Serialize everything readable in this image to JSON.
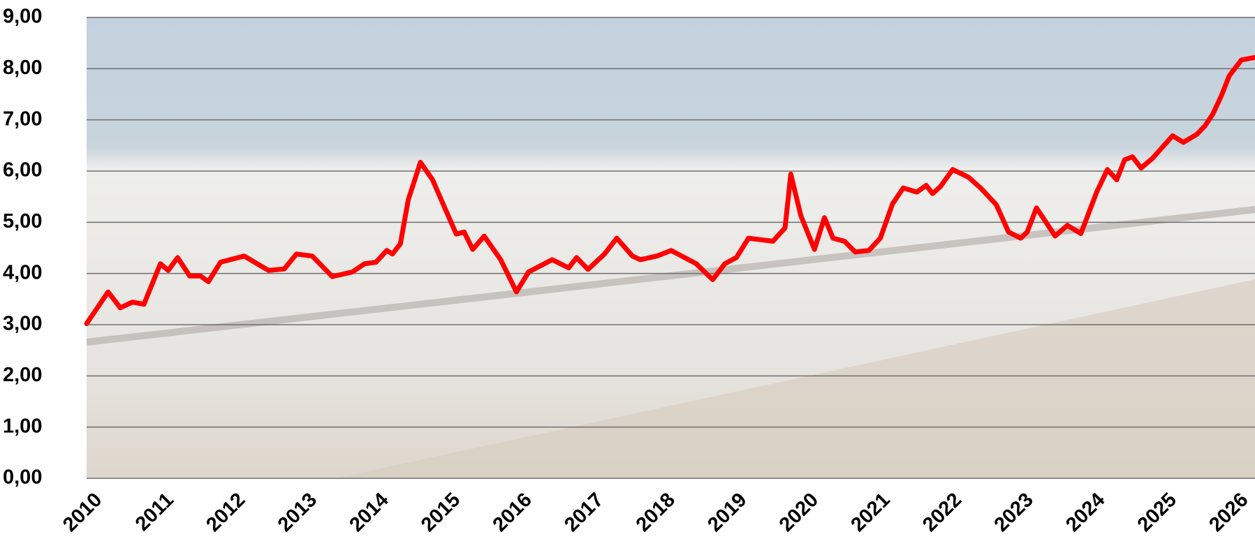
{
  "chart_data": {
    "type": "line",
    "x": [
      2010.0,
      2010.3,
      2010.47,
      2010.64,
      2010.8,
      2011.03,
      2011.14,
      2011.27,
      2011.44,
      2011.59,
      2011.7,
      2011.87,
      2012.2,
      2012.54,
      2012.76,
      2012.93,
      2013.15,
      2013.43,
      2013.71,
      2013.88,
      2014.04,
      2014.19,
      2014.27,
      2014.38,
      2014.49,
      2014.66,
      2014.83,
      2015.0,
      2015.16,
      2015.27,
      2015.39,
      2015.55,
      2015.78,
      2016.0,
      2016.17,
      2016.5,
      2016.73,
      2016.84,
      2017.0,
      2017.23,
      2017.4,
      2017.62,
      2017.73,
      2017.96,
      2018.16,
      2018.51,
      2018.74,
      2018.91,
      2019.07,
      2019.24,
      2019.41,
      2019.58,
      2019.75,
      2019.83,
      2019.97,
      2020.16,
      2020.3,
      2020.42,
      2020.58,
      2020.73,
      2020.92,
      2021.08,
      2021.25,
      2021.4,
      2021.59,
      2021.72,
      2021.81,
      2021.92,
      2022.09,
      2022.31,
      2022.48,
      2022.7,
      2022.87,
      2023.04,
      2023.13,
      2023.26,
      2023.37,
      2023.52,
      2023.69,
      2023.88,
      2024.1,
      2024.25,
      2024.38,
      2024.49,
      2024.6,
      2024.72,
      2024.88,
      2025.16,
      2025.31,
      2025.5,
      2025.61,
      2025.72,
      2025.84,
      2025.95,
      2026.12,
      2026.31
    ],
    "values": [
      3.02,
      3.64,
      3.33,
      3.44,
      3.4,
      4.19,
      4.06,
      4.31,
      3.95,
      3.95,
      3.84,
      4.22,
      4.34,
      4.06,
      4.09,
      4.38,
      4.34,
      3.94,
      4.03,
      4.19,
      4.22,
      4.45,
      4.38,
      4.58,
      5.44,
      6.17,
      5.83,
      5.28,
      4.77,
      4.81,
      4.47,
      4.73,
      4.27,
      3.64,
      4.03,
      4.27,
      4.11,
      4.31,
      4.08,
      4.38,
      4.69,
      4.34,
      4.27,
      4.34,
      4.45,
      4.19,
      3.88,
      4.19,
      4.31,
      4.69,
      4.66,
      4.63,
      4.89,
      5.94,
      5.13,
      4.47,
      5.09,
      4.69,
      4.63,
      4.42,
      4.45,
      4.69,
      5.36,
      5.67,
      5.59,
      5.72,
      5.56,
      5.7,
      6.03,
      5.88,
      5.67,
      5.34,
      4.81,
      4.69,
      4.81,
      5.28,
      5.05,
      4.73,
      4.94,
      4.78,
      5.59,
      6.03,
      5.83,
      6.22,
      6.28,
      6.06,
      6.25,
      6.69,
      6.56,
      6.72,
      6.88,
      7.11,
      7.47,
      7.86,
      8.17,
      8.22
    ],
    "color": "#ff0000",
    "xlim": [
      2010,
      2026.31
    ],
    "xticks": [
      2010,
      2011,
      2012,
      2013,
      2014,
      2015,
      2016,
      2017,
      2018,
      2019,
      2020,
      2021,
      2022,
      2023,
      2024,
      2025,
      2026
    ],
    "ylim": [
      0,
      9
    ],
    "yticks": [
      {
        "value": 0,
        "label": "0,00"
      },
      {
        "value": 1,
        "label": "1,00"
      },
      {
        "value": 2,
        "label": "2,00"
      },
      {
        "value": 3,
        "label": "3,00"
      },
      {
        "value": 4,
        "label": "4,00"
      },
      {
        "value": 5,
        "label": "5,00"
      },
      {
        "value": 6,
        "label": "6,00"
      },
      {
        "value": 7,
        "label": "7,00"
      },
      {
        "value": 8,
        "label": "8,00"
      },
      {
        "value": 9,
        "label": "9,00"
      }
    ],
    "grid": true
  }
}
